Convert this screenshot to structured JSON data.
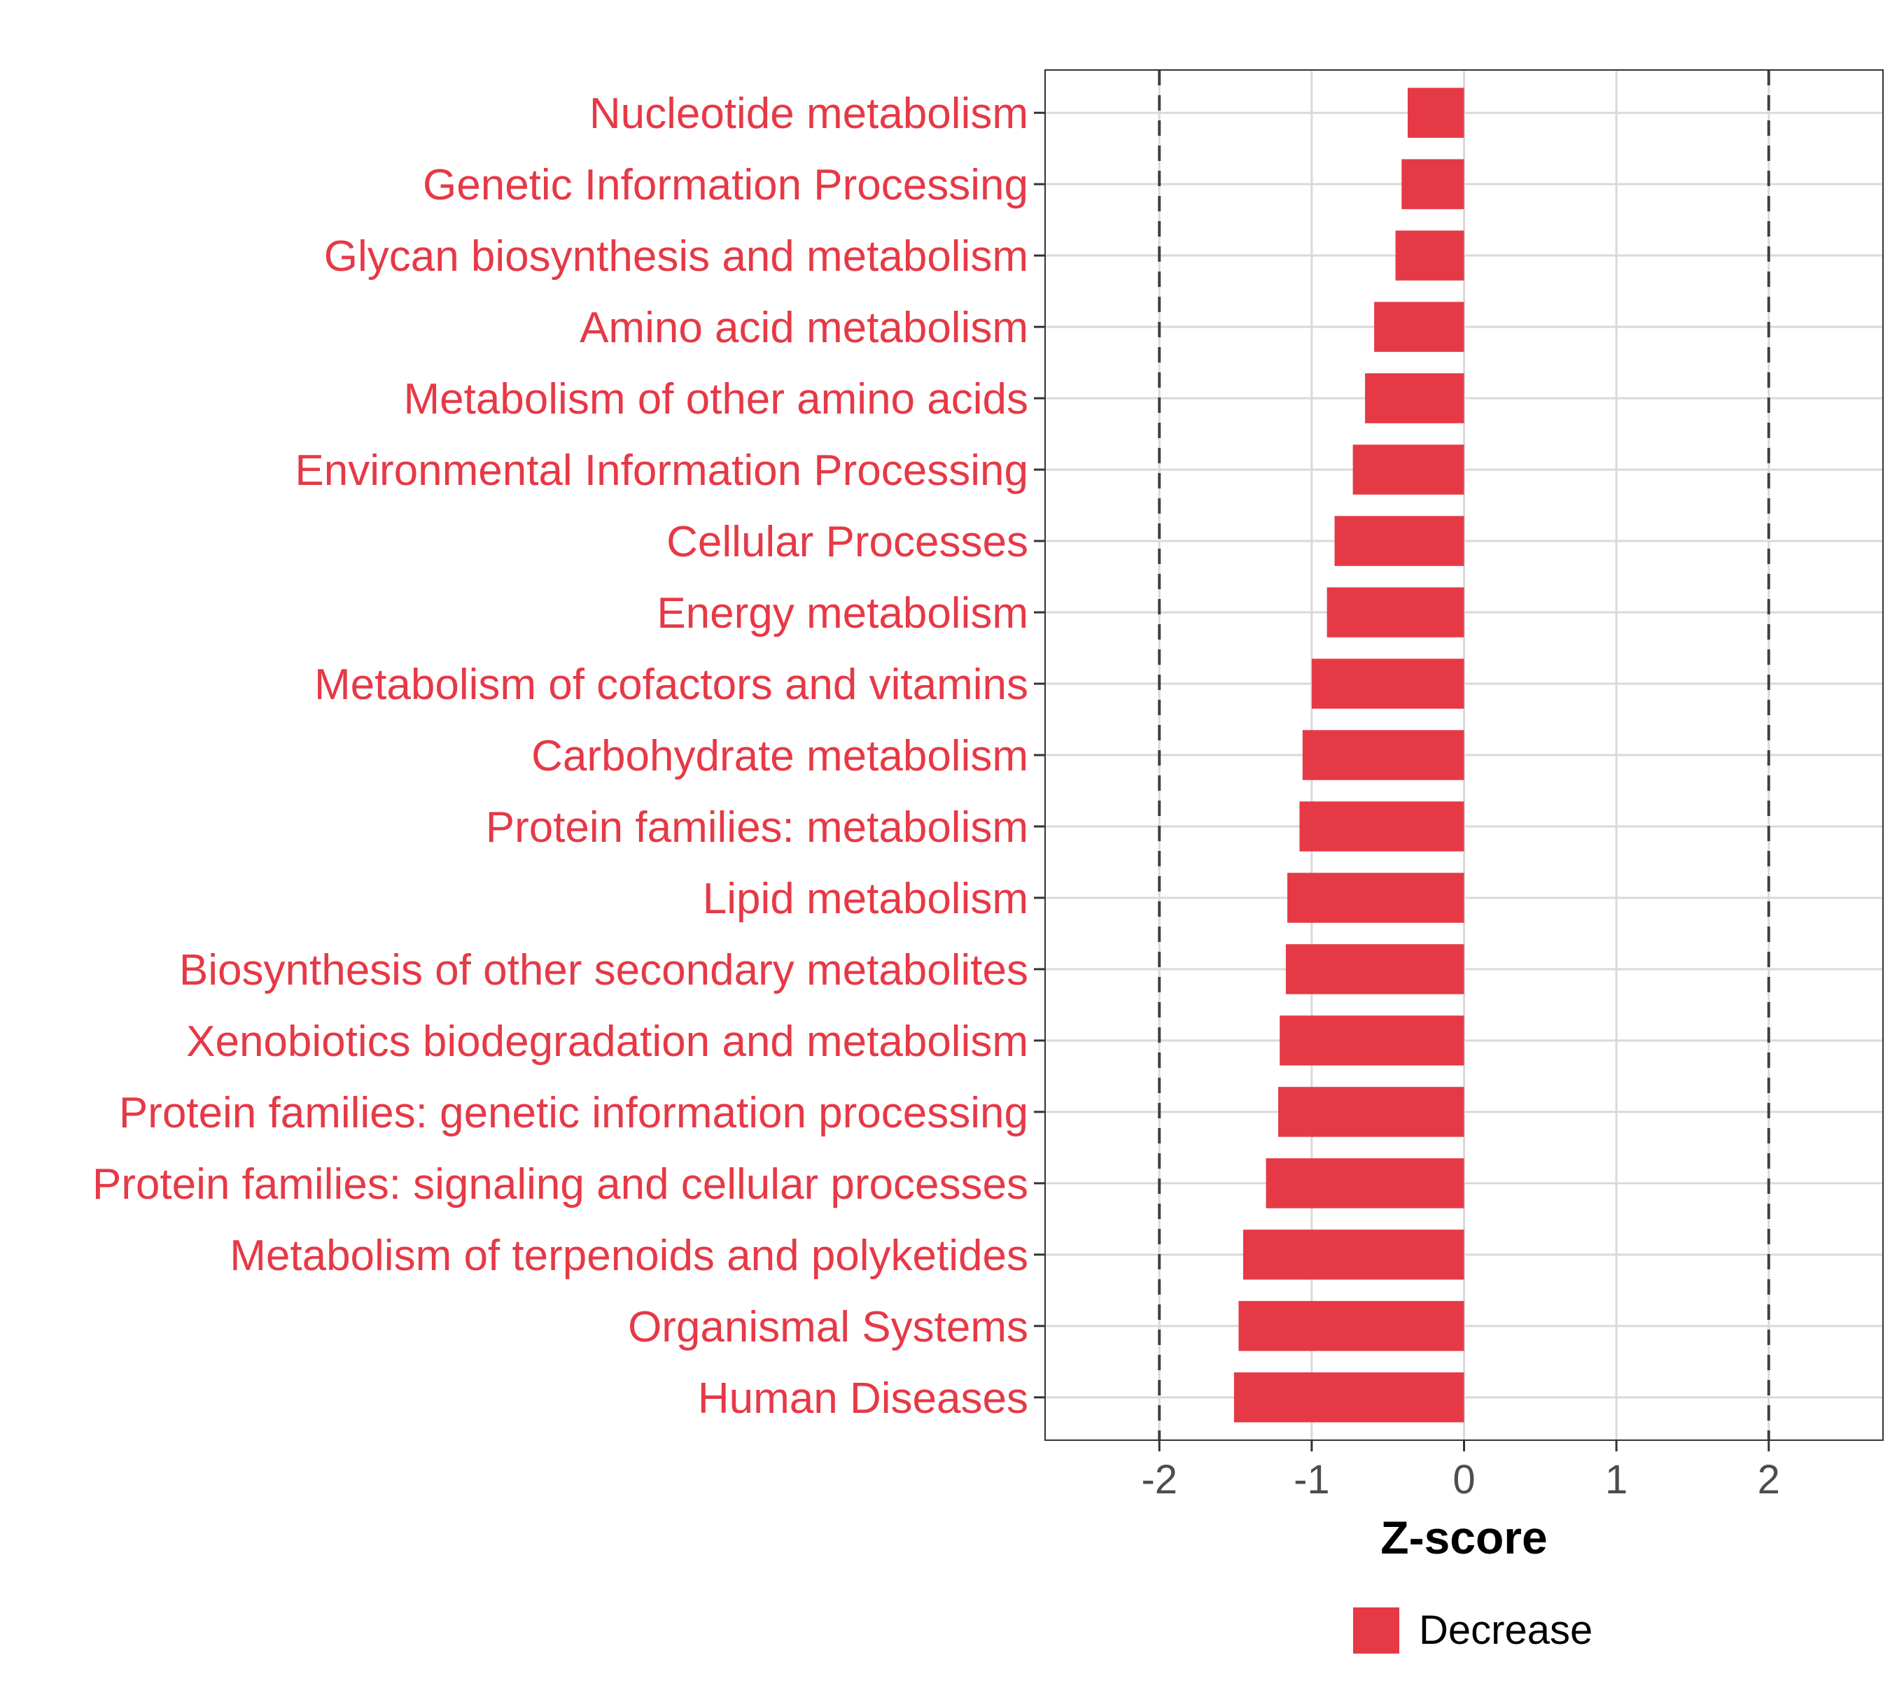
{
  "chart_data": {
    "type": "bar",
    "orientation": "horizontal",
    "categories": [
      "Nucleotide metabolism",
      "Genetic Information Processing",
      "Glycan biosynthesis and metabolism",
      "Amino acid metabolism",
      "Metabolism of other amino acids",
      "Environmental Information Processing",
      "Cellular Processes",
      "Energy metabolism",
      "Metabolism of cofactors and vitamins",
      "Carbohydrate metabolism",
      "Protein families: metabolism",
      "Lipid metabolism",
      "Biosynthesis of other secondary metabolites",
      "Xenobiotics biodegradation and metabolism",
      "Protein families: genetic information processing",
      "Protein families: signaling and cellular processes",
      "Metabolism of terpenoids and polyketides",
      "Organismal Systems",
      "Human Diseases"
    ],
    "series": [
      {
        "name": "Decrease",
        "color": "#e63946",
        "values": [
          -0.37,
          -0.41,
          -0.45,
          -0.59,
          -0.65,
          -0.73,
          -0.85,
          -0.9,
          -1.0,
          -1.06,
          -1.08,
          -1.16,
          -1.17,
          -1.21,
          -1.22,
          -1.3,
          -1.45,
          -1.48,
          -1.51
        ]
      }
    ],
    "xlabel": "Z-score",
    "ylabel": "",
    "xlim": [
      -2.75,
      2.75
    ],
    "xticks": [
      -2,
      -1,
      0,
      1,
      2
    ],
    "xtick_labels": [
      "-2",
      "-1",
      "0",
      "1",
      "2"
    ],
    "reference_lines": [
      -2,
      2
    ],
    "legend": {
      "position": "bottom",
      "entries": [
        {
          "label": "Decrease",
          "color": "#e63946"
        }
      ]
    },
    "category_label_color": "#e63946",
    "grid": true
  }
}
